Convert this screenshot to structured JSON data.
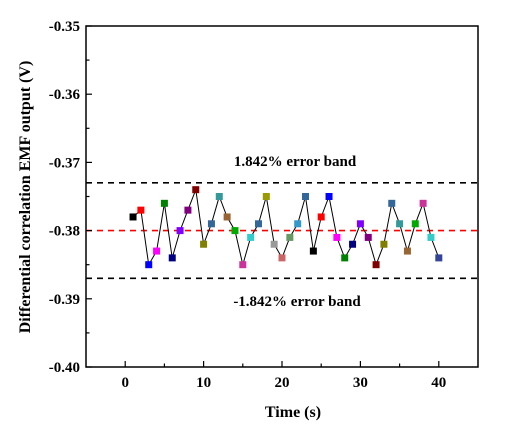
{
  "chart_data": {
    "type": "line",
    "title": "",
    "xlabel": "Time (s)",
    "ylabel": "Differential correlation EMF output (V)",
    "xlim": [
      -5,
      45
    ],
    "ylim": [
      -0.4,
      -0.35
    ],
    "xticks": [
      0,
      10,
      20,
      30,
      40
    ],
    "xtick_labels": [
      "0",
      "10",
      "20",
      "30",
      "40"
    ],
    "yticks": [
      -0.4,
      -0.39,
      -0.38,
      -0.37,
      -0.36,
      -0.35
    ],
    "ytick_labels": [
      "-0.40",
      "-0.39",
      "-0.38",
      "-0.37",
      "-0.36",
      "-0.35"
    ],
    "grid": false,
    "series": [
      {
        "x": [
          1,
          2,
          3,
          4,
          5,
          6,
          7,
          8,
          9,
          10,
          11,
          12,
          13,
          14,
          15,
          16,
          17,
          18,
          19,
          20,
          21,
          22,
          23,
          24,
          25,
          26,
          27,
          28,
          29,
          30,
          31,
          32,
          33,
          34,
          35,
          36,
          37,
          38,
          39,
          40
        ],
        "values": [
          -0.378,
          -0.377,
          -0.385,
          -0.383,
          -0.376,
          -0.384,
          -0.38,
          -0.377,
          -0.374,
          -0.382,
          -0.379,
          -0.375,
          -0.378,
          -0.38,
          -0.385,
          -0.381,
          -0.379,
          -0.375,
          -0.382,
          -0.384,
          -0.381,
          -0.379,
          -0.375,
          -0.383,
          -0.378,
          -0.375,
          -0.381,
          -0.384,
          -0.382,
          -0.379,
          -0.381,
          -0.385,
          -0.382,
          -0.376,
          -0.379,
          -0.383,
          -0.379,
          -0.376,
          -0.381,
          -0.384
        ],
        "marker_colors": [
          "#000000",
          "#ff0000",
          "#0000ff",
          "#ff00ff",
          "#008000",
          "#000080",
          "#8000ff",
          "#800080",
          "#800000",
          "#808000",
          "#336699",
          "#339999",
          "#996633",
          "#00aa00",
          "#cc3399",
          "#33cccc",
          "#336699",
          "#999900",
          "#999999",
          "#cc6666",
          "#669966",
          "#3399cc",
          "#336699",
          "#000000",
          "#ff0000",
          "#0000ff",
          "#ff00ff",
          "#008000",
          "#000080",
          "#8000ff",
          "#800080",
          "#800000",
          "#808000",
          "#336699",
          "#339999",
          "#996633",
          "#00aa00",
          "#cc3399",
          "#33cccc",
          "#334499"
        ]
      }
    ],
    "reference_lines": [
      {
        "y": -0.373,
        "color": "#000000",
        "style": "dashed",
        "label": "1.842% error band"
      },
      {
        "y": -0.38,
        "color": "#ff0000",
        "style": "dashed",
        "label": ""
      },
      {
        "y": -0.387,
        "color": "#000000",
        "style": "dashed",
        "label": "-1.842% error band"
      }
    ]
  }
}
